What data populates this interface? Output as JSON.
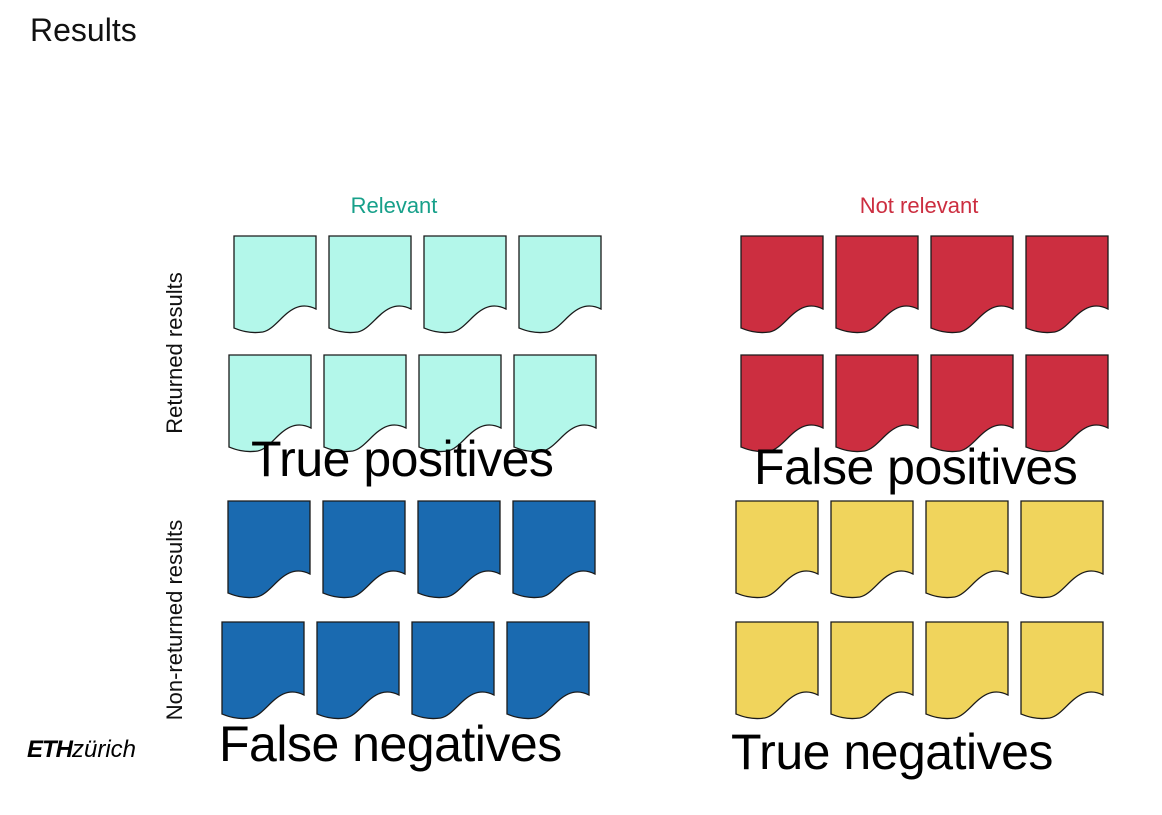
{
  "title": "Results",
  "columns": [
    {
      "label": "Relevant",
      "color": "#17a08a"
    },
    {
      "label": "Not relevant",
      "color": "#cc2e40"
    }
  ],
  "rows": [
    {
      "label": "Returned results"
    },
    {
      "label": "Non-returned results"
    }
  ],
  "quadrants": {
    "true_positives": {
      "label": "True positives",
      "color": "#b3f7ea",
      "count": 8
    },
    "false_positives": {
      "label": "False positives",
      "color": "#cc2e40",
      "count": 8
    },
    "false_negatives": {
      "label": "False negatives",
      "color": "#1a6ab0",
      "count": 8
    },
    "true_negatives": {
      "label": "True negatives",
      "color": "#f0d45c",
      "count": 8
    }
  },
  "logo": {
    "bold": "ETH",
    "rest": "zürich"
  }
}
